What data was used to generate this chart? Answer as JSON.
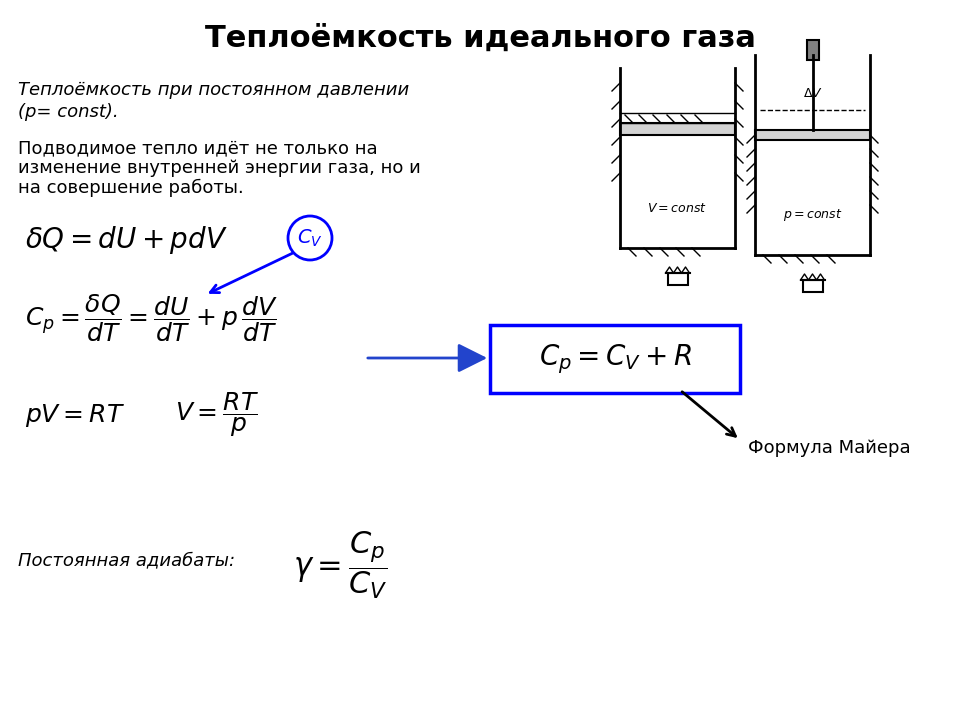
{
  "title": "Теплоёмкость идеального газа",
  "title_fontsize": 22,
  "bg_color": "#ffffff",
  "text_color": "#000000",
  "italic_text1": "Теплоёмкость при постоянном давлении",
  "italic_text2": "(p= const).",
  "normal_text1": "Подводимое тепло идёт не только на",
  "normal_text2": "изменение внутренней энергии газа, но и",
  "normal_text3": "на совершение работы.",
  "formula_mayer": "C_p = C_V + R",
  "formula_mayer_label": "Формула Майера",
  "adiabat_label": "Постоянная адиабаты:",
  "box_color": "#0000ff",
  "arrow_color": "#0000cc"
}
